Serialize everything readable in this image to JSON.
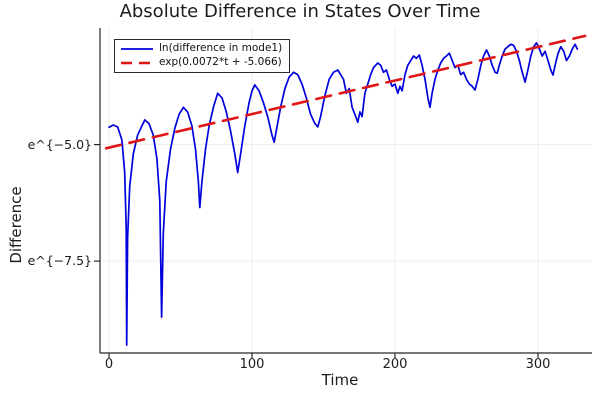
{
  "title": "Absolute Difference in States Over Time",
  "colors": {
    "series_blue": "#0000dd",
    "trend_red": "#e01616",
    "grid": "#ececec",
    "spine": "#26262d",
    "text": "#1c1c1c",
    "background": "#ffffff"
  },
  "chart_data": {
    "type": "line",
    "title": "Absolute Difference in States Over Time",
    "xlabel": "Time",
    "ylabel": "Difference",
    "xlim": [
      -6.3,
      337.8
    ],
    "ylim": [
      -9.47,
      -2.5
    ],
    "x_ticks": [
      0,
      100,
      200,
      300
    ],
    "x_tick_labels": [
      "0",
      "100",
      "200",
      "300"
    ],
    "y_ticks": [
      -5.0,
      -7.5
    ],
    "y_tick_labels": [
      "e^{−5.0}",
      "e^{−7.5}"
    ],
    "grid": true,
    "legend_position": "top-left",
    "series": [
      {
        "name": "ln(difference in mode1)",
        "color": "#0000dd",
        "style": "solid",
        "x": [
          0,
          3,
          6,
          9,
          11,
          12,
          12.4,
          13,
          14.5,
          17,
          20,
          23,
          25,
          28,
          31,
          33.5,
          35.5,
          36.8,
          38,
          40,
          43,
          46,
          49,
          52,
          55,
          58,
          60.5,
          62.5,
          63.5,
          65,
          67.5,
          70,
          73,
          76,
          79,
          82,
          85,
          88,
          90,
          92,
          95,
          98,
          100,
          102,
          105,
          108,
          111,
          114,
          115.5,
          117,
          120,
          123,
          126,
          129,
          132,
          135,
          138,
          141,
          144,
          146,
          148,
          151,
          154,
          157,
          160,
          162,
          164,
          166,
          168,
          170,
          172,
          174,
          175.5,
          177,
          179,
          181,
          183,
          185,
          188,
          190,
          192,
          194,
          196,
          198,
          200,
          202,
          203.5,
          205,
          207,
          209,
          211,
          213,
          215,
          217,
          219,
          221,
          223,
          224.5,
          226,
          228,
          230,
          232,
          234,
          236,
          238,
          240,
          242,
          244,
          246,
          248,
          250,
          252,
          254,
          256,
          258,
          260,
          262,
          264,
          266,
          268,
          270,
          271.5,
          273,
          275,
          277,
          279,
          281,
          283,
          285,
          287,
          289,
          291,
          293,
          295,
          297,
          299,
          301,
          303,
          305,
          307,
          309,
          310.5,
          312,
          314,
          316,
          318,
          320,
          322,
          324,
          326,
          327.5
        ],
        "y": [
          -4.63,
          -4.58,
          -4.62,
          -4.9,
          -5.6,
          -6.8,
          -9.3,
          -7.0,
          -5.9,
          -5.2,
          -4.8,
          -4.6,
          -4.47,
          -4.55,
          -4.8,
          -5.3,
          -6.2,
          -8.7,
          -6.9,
          -5.8,
          -5.1,
          -4.65,
          -4.35,
          -4.2,
          -4.3,
          -4.6,
          -5.1,
          -5.8,
          -6.35,
          -5.8,
          -5.1,
          -4.6,
          -4.2,
          -3.9,
          -4.0,
          -4.3,
          -4.7,
          -5.2,
          -5.6,
          -5.2,
          -4.6,
          -4.1,
          -3.85,
          -3.72,
          -3.85,
          -4.1,
          -4.4,
          -4.8,
          -4.95,
          -4.7,
          -4.2,
          -3.8,
          -3.55,
          -3.45,
          -3.5,
          -3.7,
          -4.0,
          -4.35,
          -4.55,
          -4.62,
          -4.4,
          -3.95,
          -3.6,
          -3.45,
          -3.4,
          -3.5,
          -3.6,
          -3.9,
          -3.8,
          -4.2,
          -4.35,
          -4.52,
          -4.3,
          -4.4,
          -3.9,
          -3.7,
          -3.5,
          -3.35,
          -3.25,
          -3.3,
          -3.45,
          -3.4,
          -3.6,
          -3.75,
          -3.7,
          -3.9,
          -3.75,
          -3.85,
          -3.5,
          -3.3,
          -3.2,
          -3.1,
          -3.15,
          -3.08,
          -3.3,
          -3.6,
          -4.0,
          -4.2,
          -3.9,
          -3.6,
          -3.4,
          -3.25,
          -3.15,
          -3.1,
          -3.04,
          -3.2,
          -3.35,
          -3.3,
          -3.5,
          -3.45,
          -3.6,
          -3.7,
          -3.75,
          -3.83,
          -3.6,
          -3.3,
          -3.1,
          -2.97,
          -3.1,
          -3.3,
          -3.45,
          -3.47,
          -3.3,
          -3.1,
          -2.95,
          -2.9,
          -2.85,
          -2.87,
          -3.0,
          -3.2,
          -3.45,
          -3.66,
          -3.4,
          -3.1,
          -2.9,
          -2.82,
          -2.95,
          -3.1,
          -3.0,
          -3.2,
          -3.4,
          -3.51,
          -3.3,
          -3.05,
          -2.9,
          -3.0,
          -3.2,
          -3.1,
          -2.95,
          -2.85,
          -2.95
        ]
      },
      {
        "name": "exp(0.0072*t + -5.066)",
        "color": "#e01616",
        "style": "dashed",
        "x": [
          -2,
          333
        ],
        "y": [
          -5.0804,
          -2.6684
        ]
      }
    ]
  }
}
